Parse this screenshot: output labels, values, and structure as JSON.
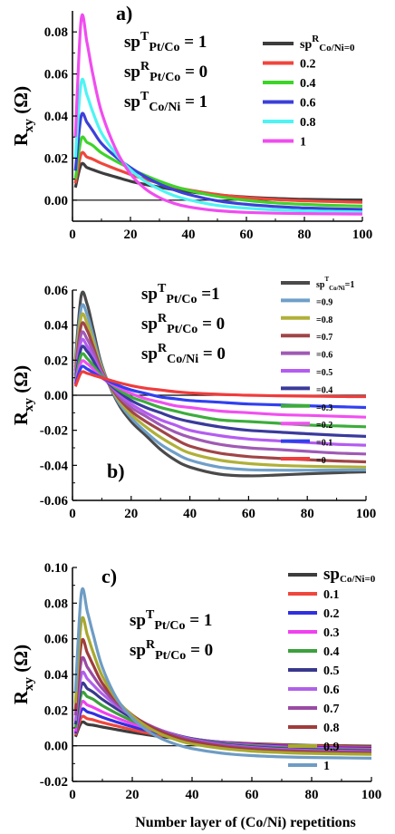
{
  "chart_data": [
    {
      "type": "line",
      "panel_label": "a)",
      "ylabel": "R",
      "ylabel_sub": "xy",
      "ylabel_unit": " (Ω)",
      "xlim": [
        0,
        100
      ],
      "ylim": [
        -0.01,
        0.09
      ],
      "xticks": [
        0,
        20,
        40,
        60,
        80,
        100
      ],
      "yticks": [
        0.0,
        0.02,
        0.04,
        0.06,
        0.08
      ],
      "ytick_labels": [
        "0.00",
        "0.02",
        "0.04",
        "0.06",
        "0.08"
      ],
      "annotations": [
        {
          "base": "sp",
          "sup": "T",
          "sub": "Pt/Co",
          "rest": " = 1"
        },
        {
          "base": "sp",
          "sup": "R",
          "sub": "Pt/Co",
          "rest": " = 0"
        },
        {
          "base": "sp",
          "sup": "T",
          "sub": "Co/Ni",
          "rest": " = 1"
        }
      ],
      "legend_title": {
        "base": "sp",
        "sup": "R",
        "sub": "Co/Ni=0"
      },
      "legend_position": "top-right",
      "x": [
        1,
        3,
        5,
        7,
        10,
        15,
        20,
        25,
        30,
        35,
        40,
        50,
        60,
        70,
        80,
        90,
        100
      ],
      "series": [
        {
          "name": "sp R Co/Ni=0",
          "color": "#3d3d3d",
          "values": [
            0.006,
            0.017,
            0.0155,
            0.0145,
            0.013,
            0.011,
            0.009,
            0.0075,
            0.0062,
            0.005,
            0.004,
            0.0025,
            0.0015,
            0.0008,
            0.0004,
            0.0002,
            0.0001
          ]
        },
        {
          "name": "0.2",
          "color": "#f0463c",
          "values": [
            0.008,
            0.022,
            0.0205,
            0.0195,
            0.0175,
            0.0148,
            0.0122,
            0.01,
            0.008,
            0.0063,
            0.0049,
            0.0027,
            0.0012,
            0.0003,
            -0.0003,
            -0.0007,
            -0.001
          ]
        },
        {
          "name": "0.4",
          "color": "#3dd42a",
          "values": [
            0.01,
            0.029,
            0.0275,
            0.026,
            0.0225,
            0.0185,
            0.015,
            0.0118,
            0.009,
            0.0066,
            0.0047,
            0.0018,
            -0.0001,
            -0.0013,
            -0.002,
            -0.0025,
            -0.0028
          ]
        },
        {
          "name": "0.6",
          "color": "#3c3fd8",
          "values": [
            0.014,
            0.04,
            0.037,
            0.033,
            0.027,
            0.0205,
            0.0155,
            0.0112,
            0.0077,
            0.0049,
            0.0027,
            -0.0003,
            -0.002,
            -0.003,
            -0.0037,
            -0.0041,
            -0.0044
          ]
        },
        {
          "name": "0.8",
          "color": "#4ef4f4",
          "values": [
            0.02,
            0.056,
            0.05,
            0.042,
            0.032,
            0.022,
            0.0145,
            0.009,
            0.0052,
            0.0022,
            0.0002,
            -0.0025,
            -0.0038,
            -0.0046,
            -0.0051,
            -0.0054,
            -0.0056
          ]
        },
        {
          "name": "1",
          "color": "#f04cf0",
          "values": [
            0.03,
            0.086,
            0.075,
            0.06,
            0.042,
            0.024,
            0.0125,
            0.0055,
            0.0012,
            -0.0015,
            -0.0032,
            -0.005,
            -0.0058,
            -0.0062,
            -0.0064,
            -0.0065,
            -0.0066
          ]
        }
      ]
    },
    {
      "type": "line",
      "panel_label": "b)",
      "ylabel": "R",
      "ylabel_sub": "xy",
      "ylabel_unit": " (Ω)",
      "xlim": [
        0,
        100
      ],
      "ylim": [
        -0.06,
        0.06
      ],
      "xticks": [
        0,
        20,
        40,
        60,
        80,
        100
      ],
      "yticks": [
        -0.06,
        -0.04,
        -0.02,
        0.0,
        0.02,
        0.04,
        0.06
      ],
      "ytick_labels": [
        "-0.06",
        "-0.04",
        "-0.02",
        "0.00",
        "0.02",
        "0.04",
        "0.06"
      ],
      "annotations": [
        {
          "base": "sp",
          "sup": "T",
          "sub": "Pt/Co",
          "rest": " =1"
        },
        {
          "base": "sp",
          "sup": "R",
          "sub": "Pt/Co",
          "rest": " = 0"
        },
        {
          "base": "sp",
          "sup": "R",
          "sub": "Co/Ni",
          "rest": " = 0"
        }
      ],
      "legend_title": {
        "base": "sp",
        "sup": "T",
        "sub": "Co/Ni",
        "rest": "=1"
      },
      "legend_position": "top-right",
      "x": [
        1,
        3,
        5,
        7,
        10,
        15,
        20,
        25,
        30,
        35,
        40,
        50,
        60,
        70,
        80,
        90,
        100
      ],
      "series": [
        {
          "name": "sp T Co/Ni=1",
          "color": "#4a4a4a",
          "values": [
            0.02,
            0.057,
            0.052,
            0.038,
            0.017,
            -0.003,
            -0.015,
            -0.023,
            -0.031,
            -0.037,
            -0.041,
            -0.045,
            -0.046,
            -0.0455,
            -0.0448,
            -0.0442,
            -0.0437
          ]
        },
        {
          "name": "=0.9",
          "color": "#6f9fc8",
          "values": [
            0.018,
            0.05,
            0.046,
            0.034,
            0.016,
            -0.002,
            -0.013,
            -0.021,
            -0.028,
            -0.033,
            -0.037,
            -0.041,
            -0.0425,
            -0.0428,
            -0.0428,
            -0.0427,
            -0.0426
          ]
        },
        {
          "name": "=0.8",
          "color": "#b0b03a",
          "values": [
            0.016,
            0.045,
            0.041,
            0.031,
            0.015,
            -0.001,
            -0.011,
            -0.018,
            -0.024,
            -0.029,
            -0.033,
            -0.037,
            -0.039,
            -0.04,
            -0.0405,
            -0.0408,
            -0.041
          ]
        },
        {
          "name": "=0.7",
          "color": "#a04548",
          "values": [
            0.014,
            0.04,
            0.037,
            0.028,
            0.014,
            0.0,
            -0.009,
            -0.015,
            -0.02,
            -0.025,
            -0.029,
            -0.033,
            -0.035,
            -0.036,
            -0.0368,
            -0.0375,
            -0.038
          ]
        },
        {
          "name": "=0.6",
          "color": "#a05ab4",
          "values": [
            0.012,
            0.035,
            0.032,
            0.025,
            0.013,
            0.001,
            -0.007,
            -0.012,
            -0.017,
            -0.021,
            -0.024,
            -0.028,
            -0.03,
            -0.031,
            -0.032,
            -0.033,
            -0.0335
          ]
        },
        {
          "name": "=0.5",
          "color": "#b45cf0",
          "values": [
            0.011,
            0.031,
            0.028,
            0.022,
            0.012,
            0.002,
            -0.005,
            -0.01,
            -0.014,
            -0.017,
            -0.02,
            -0.023,
            -0.025,
            -0.026,
            -0.027,
            -0.028,
            -0.0285
          ]
        },
        {
          "name": "=0.4",
          "color": "#3a3a9c",
          "values": [
            0.009,
            0.027,
            0.025,
            0.02,
            0.011,
            0.003,
            -0.003,
            -0.007,
            -0.01,
            -0.013,
            -0.015,
            -0.018,
            -0.02,
            -0.021,
            -0.022,
            -0.0228,
            -0.0235
          ]
        },
        {
          "name": "=0.3",
          "color": "#3cac3c",
          "values": [
            0.008,
            0.023,
            0.021,
            0.017,
            0.011,
            0.004,
            -0.001,
            -0.004,
            -0.007,
            -0.009,
            -0.011,
            -0.014,
            -0.015,
            -0.016,
            -0.017,
            -0.0175,
            -0.018
          ]
        },
        {
          "name": "=0.2",
          "color": "#f050f0",
          "values": [
            0.007,
            0.019,
            0.018,
            0.015,
            0.01,
            0.005,
            0.001,
            -0.002,
            -0.004,
            -0.006,
            -0.007,
            -0.009,
            -0.01,
            -0.011,
            -0.0115,
            -0.012,
            -0.0125
          ]
        },
        {
          "name": "=0.1",
          "color": "#3040f0",
          "values": [
            0.006,
            0.016,
            0.015,
            0.013,
            0.01,
            0.006,
            0.003,
            0.001,
            -0.001,
            -0.002,
            -0.003,
            -0.004,
            -0.005,
            -0.0055,
            -0.006,
            -0.0065,
            -0.007
          ]
        },
        {
          "name": "=0",
          "color": "#f03c3c",
          "values": [
            0.005,
            0.013,
            0.0125,
            0.0115,
            0.01,
            0.0075,
            0.0055,
            0.004,
            0.003,
            0.002,
            0.0013,
            0.0005,
            0.0,
            -0.0003,
            -0.0005,
            -0.0007,
            -0.0008
          ]
        }
      ]
    },
    {
      "type": "line",
      "panel_label": "c)",
      "ylabel": "R",
      "ylabel_sub": "xy",
      "ylabel_unit": " (Ω)",
      "xlabel": "Number layer of (Co/Ni) repetitions",
      "xlim": [
        0,
        100
      ],
      "ylim": [
        -0.02,
        0.1
      ],
      "xticks": [
        0,
        20,
        40,
        60,
        80,
        100
      ],
      "yticks": [
        -0.02,
        0.0,
        0.02,
        0.04,
        0.06,
        0.08,
        0.1
      ],
      "ytick_labels": [
        "-0.02",
        "0.00",
        "0.02",
        "0.04",
        "0.06",
        "0.08",
        "0.10"
      ],
      "annotations": [
        {
          "base": "sp",
          "sup": "T",
          "sub": "Pt/Co",
          "rest": " = 1"
        },
        {
          "base": "sp",
          "sup": "R",
          "sub": "Pt/Co",
          "rest": " = 0"
        }
      ],
      "legend_title": {
        "base": "sp",
        "sub": "Co/Ni=0"
      },
      "legend_position": "top-right",
      "x": [
        1,
        3,
        5,
        7,
        10,
        15,
        20,
        25,
        30,
        35,
        40,
        50,
        60,
        70,
        80,
        90,
        100
      ],
      "series": [
        {
          "name": "sp Co/Ni=0",
          "color": "#3d3d3d",
          "values": [
            0.005,
            0.013,
            0.012,
            0.0115,
            0.0105,
            0.009,
            0.0075,
            0.0062,
            0.005,
            0.004,
            0.0032,
            0.002,
            0.0012,
            0.0006,
            0.0002,
            0.0,
            -0.0002
          ]
        },
        {
          "name": "0.1",
          "color": "#f0463c",
          "values": [
            0.006,
            0.016,
            0.0152,
            0.0145,
            0.013,
            0.011,
            0.009,
            0.0072,
            0.0058,
            0.0045,
            0.0035,
            0.002,
            0.001,
            0.0003,
            -0.0002,
            -0.0005,
            -0.0008
          ]
        },
        {
          "name": "0.2",
          "color": "#3030e0",
          "values": [
            0.007,
            0.02,
            0.019,
            0.018,
            0.016,
            0.0132,
            0.0107,
            0.0085,
            0.0067,
            0.0051,
            0.0038,
            0.002,
            0.0007,
            -0.0002,
            -0.0008,
            -0.0012,
            -0.0015
          ]
        },
        {
          "name": "0.3",
          "color": "#f040f0",
          "values": [
            0.008,
            0.024,
            0.0228,
            0.0215,
            0.019,
            0.0155,
            0.0124,
            0.0097,
            0.0074,
            0.0055,
            0.004,
            0.0018,
            0.0003,
            -0.0007,
            -0.0013,
            -0.0017,
            -0.002
          ]
        },
        {
          "name": "0.4",
          "color": "#3ca03c",
          "values": [
            0.01,
            0.029,
            0.0275,
            0.026,
            0.0225,
            0.018,
            0.014,
            0.0108,
            0.0081,
            0.0058,
            0.004,
            0.0015,
            -0.0001,
            -0.0011,
            -0.0018,
            -0.0022,
            -0.0025
          ]
        },
        {
          "name": "0.5",
          "color": "#38388c",
          "values": [
            0.012,
            0.034,
            0.032,
            0.03,
            0.026,
            0.0205,
            0.0156,
            0.0117,
            0.0085,
            0.0059,
            0.0039,
            0.0011,
            -0.0006,
            -0.0016,
            -0.0022,
            -0.0026,
            -0.0029
          ]
        },
        {
          "name": "0.6",
          "color": "#b060e8",
          "values": [
            0.014,
            0.04,
            0.0375,
            0.034,
            0.029,
            0.0222,
            0.0166,
            0.0121,
            0.0085,
            0.0057,
            0.0036,
            0.0007,
            -0.001,
            -0.002,
            -0.0026,
            -0.003,
            -0.0033
          ]
        },
        {
          "name": "0.7",
          "color": "#9a4aa4",
          "values": [
            0.017,
            0.048,
            0.044,
            0.039,
            0.032,
            0.0235,
            0.017,
            0.012,
            0.0081,
            0.0052,
            0.003,
            0.0002,
            -0.0015,
            -0.0025,
            -0.0031,
            -0.0035,
            -0.0037
          ]
        },
        {
          "name": "0.8",
          "color": "#a03c3c",
          "values": [
            0.02,
            0.058,
            0.052,
            0.045,
            0.035,
            0.0248,
            0.0172,
            0.0116,
            0.0075,
            0.0044,
            0.0022,
            -0.0005,
            -0.0021,
            -0.003,
            -0.0036,
            -0.004,
            -0.0042
          ]
        },
        {
          "name": "0.9",
          "color": "#a8a830",
          "values": [
            0.024,
            0.07,
            0.062,
            0.052,
            0.039,
            0.0255,
            0.0168,
            0.0106,
            0.0063,
            0.0032,
            0.001,
            -0.0015,
            -0.003,
            -0.0038,
            -0.0043,
            -0.0046,
            -0.0048
          ]
        },
        {
          "name": "1",
          "color": "#6e9cc4",
          "values": [
            0.03,
            0.086,
            0.075,
            0.062,
            0.044,
            0.026,
            0.0155,
            0.0085,
            0.0038,
            0.0006,
            -0.0016,
            -0.0042,
            -0.0055,
            -0.0062,
            -0.0066,
            -0.0068,
            -0.007
          ]
        }
      ]
    }
  ]
}
